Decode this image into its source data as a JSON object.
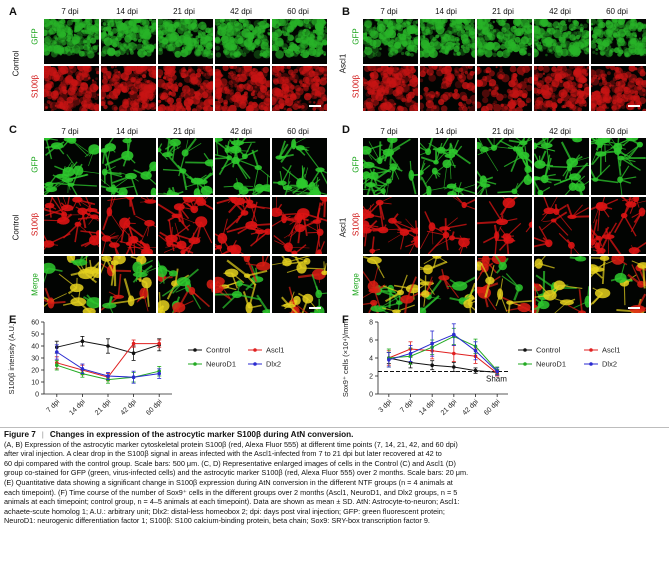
{
  "panels": {
    "A": {
      "letter": "A",
      "timepoints": [
        "7 dpi",
        "14 dpi",
        "21 dpi",
        "42 dpi",
        "60 dpi"
      ],
      "group": "Control",
      "rows": [
        "GFP",
        "S100β"
      ]
    },
    "B": {
      "letter": "B",
      "timepoints": [
        "7 dpi",
        "14 dpi",
        "21 dpi",
        "42 dpi",
        "60 dpi"
      ],
      "group": "Ascl1",
      "rows": [
        "GFP",
        "S100β"
      ]
    },
    "C": {
      "letter": "C",
      "timepoints": [
        "7 dpi",
        "14 dpi",
        "21 dpi",
        "42 dpi",
        "60 dpi"
      ],
      "group": "Control",
      "rows": [
        "GFP",
        "S100β",
        "Merge"
      ]
    },
    "D": {
      "letter": "D",
      "timepoints": [
        "7 dpi",
        "14 dpi",
        "21 dpi",
        "42 dpi",
        "60 dpi"
      ],
      "group": "Ascl1",
      "rows": [
        "GFP",
        "S100β",
        "Merge"
      ]
    },
    "E": {
      "letter": "E"
    },
    "F": {
      "letter": "F"
    }
  },
  "colors": {
    "gfp": "#1aa51a",
    "s100": "#d01010",
    "control": "#111111",
    "ascl1": "#e02020",
    "neurod1": "#22aa22",
    "dlx2": "#2a2ad0"
  },
  "chart_data": [
    {
      "type": "line",
      "ylabel": "S100β intensity (A.U.)",
      "categories": [
        "7 dpi",
        "14 dpi",
        "21 dpi",
        "42 dpi",
        "60 dpi"
      ],
      "ylim": [
        0,
        60
      ],
      "yticks": [
        0,
        10,
        20,
        30,
        40,
        50,
        60
      ],
      "legend": "top-right",
      "series": [
        {
          "name": "Control",
          "color": "#111111",
          "values": [
            39,
            44,
            40,
            34,
            41
          ],
          "err": [
            5,
            4,
            6,
            6,
            5
          ]
        },
        {
          "name": "Ascl1",
          "color": "#e02020",
          "values": [
            26,
            20,
            14,
            42,
            42
          ],
          "err": [
            5,
            4,
            3,
            3,
            3
          ]
        },
        {
          "name": "NeuroD1",
          "color": "#22aa22",
          "values": [
            24,
            17,
            12,
            14,
            19
          ],
          "err": [
            4,
            3,
            3,
            4,
            4
          ]
        },
        {
          "name": "Dlx2",
          "color": "#2a2ad0",
          "values": [
            35,
            21,
            15,
            14,
            17
          ],
          "err": [
            6,
            4,
            3,
            5,
            4
          ]
        }
      ]
    },
    {
      "type": "line",
      "ylabel": "Sox9⁺ cells (×10⁴)/mm³",
      "categories": [
        "3 dpi",
        "7 dpi",
        "14 dpi",
        "21 dpi",
        "42 dpi",
        "60 dpi"
      ],
      "ylim": [
        0,
        8
      ],
      "yticks": [
        0,
        2,
        4,
        6,
        8
      ],
      "legend": "top-right",
      "reference": {
        "label": "Sham",
        "value": 2.5
      },
      "series": [
        {
          "name": "Control",
          "color": "#111111",
          "values": [
            4.0,
            3.5,
            3.2,
            3.0,
            2.6,
            2.4
          ],
          "err": [
            0.6,
            0.6,
            0.5,
            0.5,
            0.3,
            0.3
          ]
        },
        {
          "name": "Ascl1",
          "color": "#e02020",
          "values": [
            4.0,
            5.0,
            4.8,
            4.5,
            4.2,
            2.3
          ],
          "err": [
            0.8,
            0.8,
            0.9,
            0.9,
            0.8,
            0.3
          ]
        },
        {
          "name": "NeuroD1",
          "color": "#22aa22",
          "values": [
            4.0,
            4.2,
            5.2,
            6.4,
            5.3,
            2.6
          ],
          "err": [
            1.0,
            0.9,
            0.8,
            0.9,
            0.8,
            0.4
          ]
        },
        {
          "name": "Dlx2",
          "color": "#2a2ad0",
          "values": [
            3.8,
            4.5,
            5.6,
            6.6,
            4.8,
            2.5
          ],
          "err": [
            0.8,
            0.9,
            1.4,
            1.2,
            1.0,
            0.4
          ]
        }
      ]
    }
  ],
  "caption": {
    "fig": "Figure 7",
    "sep": "|",
    "title": "Changes in expression of the astrocytic marker S100β during AtN conversion.",
    "line1": "(A, B) Expression of the astrocytic marker cytoskeletal protein S100β (red, Alexa Fluor 555) at different time points (7, 14, 21, 42, and 60 dpi)",
    "line2": "after viral injection. A clear drop in the S100β signal in areas infected with the Ascl1-infected from 7 to 21 dpi but later recovered at 42 to",
    "line3": "60 dpi compared with the control group. Scale bars: 500 μm. (C, D) Representative enlarged images of cells in the Control (C) and Ascl1 (D)",
    "line4": "group co-stained for GFP (green, virus-infected cells) and the astrocytic marker S100β (red, Alexa Fluor 555) over 2 months. Scale bars: 20 μm.",
    "line5": "(E) Quantitative data showing a significant change in S100β expression during AtN conversion in the different NTF groups (n = 4 animals at",
    "line6": "each timepoint). (F) Time course of the number of Sox9⁺ cells in the different groups over 2 months (Ascl1, NeuroD1, and Dlx2 groups, n = 5",
    "line7": "animals at each timepoint; control group, n = 4–5 animals at each timepoint). Data are shown as mean ± SD. AtN: Astrocyte-to-neuron; Ascl1:",
    "line8": "achaete-scute homolog 1; A.U.: arbitrary unit; Dlx2: distal-less homeobox 2; dpi: days post viral injection; GFP: green fluorescent protein;",
    "line9": "NeuroD1: neurogenic differentiation factor 1; S100β: S100 calcium-binding protein, beta chain; Sox9: SRY-box transcription factor 9."
  }
}
